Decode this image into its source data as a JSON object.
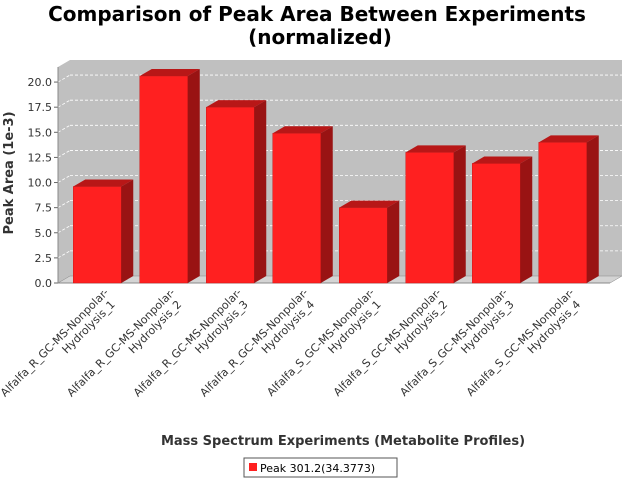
{
  "chart_data": {
    "type": "bar",
    "title": "Comparison of Peak Area Between Experiments",
    "subtitle": "(normalized)",
    "xlabel": "Mass Spectrum Experiments (Metabolite Profiles)",
    "ylabel": "Peak Area (1e-3)",
    "ylim": [
      0,
      21.5
    ],
    "yticks": [
      "0.0",
      "2.5",
      "5.0",
      "7.5",
      "10.0",
      "12.5",
      "15.0",
      "17.5",
      "20.0"
    ],
    "grid": true,
    "legend_position": "bottom",
    "categories": [
      [
        "Alfalfa_R_GC-MS-Nonpolar-",
        "Hydrolysis_1"
      ],
      [
        "Alfalfa_R_GC-MS-Nonpolar-",
        "Hydrolysis_2"
      ],
      [
        "Alfalfa_R_GC-MS-Nonpolar-",
        "Hydrolysis_3"
      ],
      [
        "Alfalfa_R_GC-MS-Nonpolar-",
        "Hydrolysis_4"
      ],
      [
        "Alfalfa_S_GC-MS-Nonpolar-",
        "Hydrolysis_1"
      ],
      [
        "Alfalfa_S_GC-MS-Nonpolar-",
        "Hydrolysis_2"
      ],
      [
        "Alfalfa_S_GC-MS-Nonpolar-",
        "Hydrolysis_3"
      ],
      [
        "Alfalfa_S_GC-MS-Nonpolar-",
        "Hydrolysis_4"
      ]
    ],
    "series": [
      {
        "name": "Peak 301.2(34.3773)",
        "color": "#ff2020",
        "values": [
          9.6,
          20.6,
          17.5,
          14.9,
          7.5,
          13.0,
          11.9,
          14.0
        ]
      }
    ]
  }
}
